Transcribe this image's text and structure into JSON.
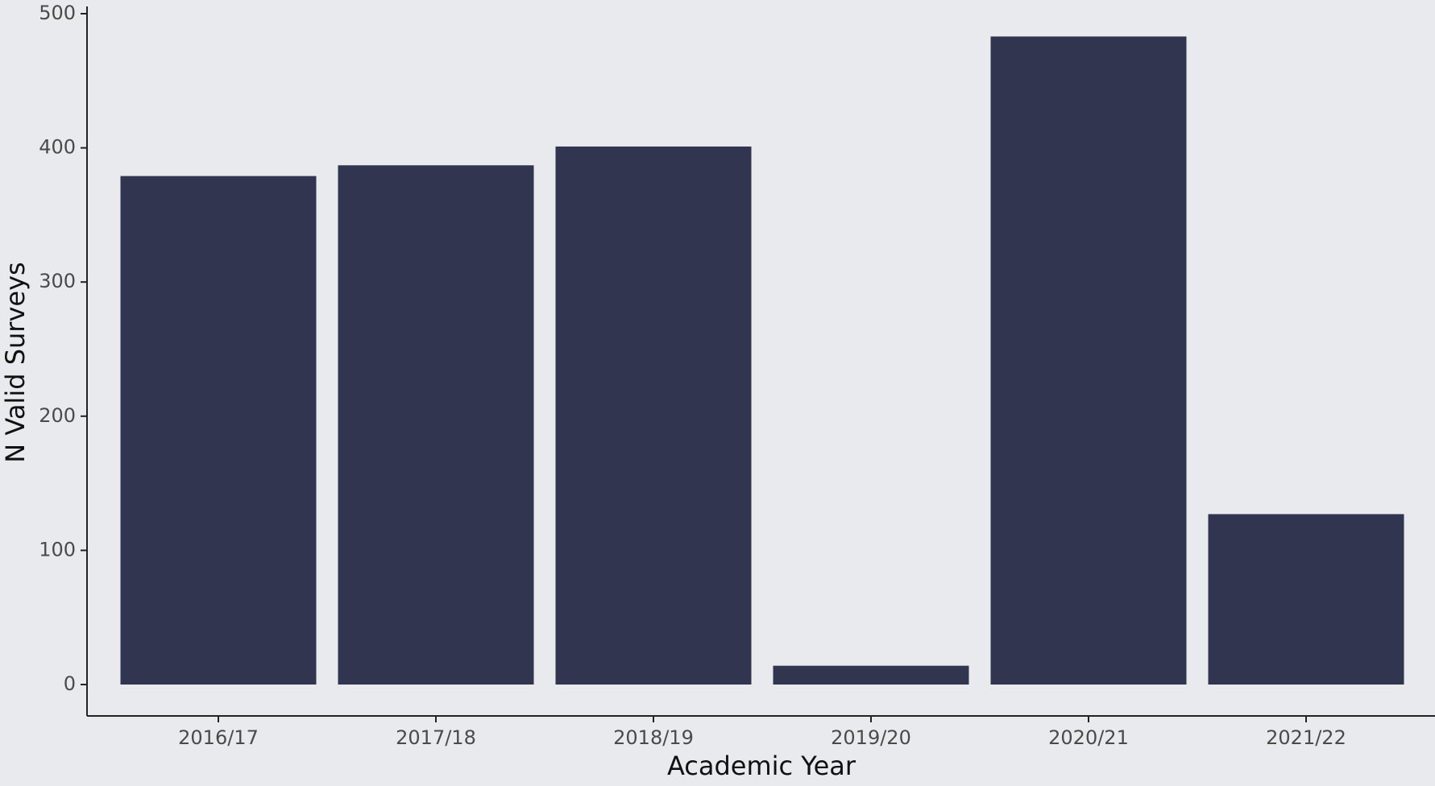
{
  "chart_data": {
    "type": "bar",
    "title": "",
    "xlabel": "Academic Year",
    "ylabel": "N Valid Surveys",
    "categories": [
      "2016/17",
      "2017/18",
      "2018/19",
      "2019/20",
      "2020/21",
      "2021/22"
    ],
    "values": [
      379,
      387,
      401,
      14,
      483,
      127
    ],
    "ylim": [
      0,
      500
    ],
    "yticks": [
      0,
      100,
      200,
      300,
      400,
      500
    ],
    "grid": false,
    "legend": "none",
    "colors": {
      "bar": "#323550",
      "background": "#e9eaed",
      "axis": "#222222"
    }
  }
}
